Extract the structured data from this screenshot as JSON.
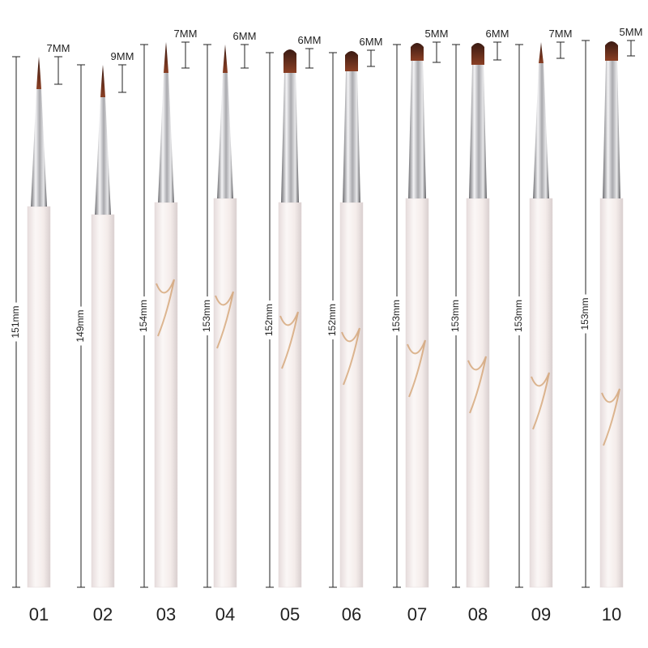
{
  "brushes": [
    {
      "number": "01",
      "tip": "7MM",
      "length": "151mm"
    },
    {
      "number": "02",
      "tip": "9MM",
      "length": "149mm"
    },
    {
      "number": "03",
      "tip": "7MM",
      "length": "154mm"
    },
    {
      "number": "04",
      "tip": "6MM",
      "length": "153mm"
    },
    {
      "number": "05",
      "tip": "6MM",
      "length": "152mm"
    },
    {
      "number": "06",
      "tip": "6MM",
      "length": "152mm"
    },
    {
      "number": "07",
      "tip": "5MM",
      "length": "153mm"
    },
    {
      "number": "08",
      "tip": "6MM",
      "length": "153mm"
    },
    {
      "number": "09",
      "tip": "7MM",
      "length": "153mm"
    },
    {
      "number": "10",
      "tip": "5MM",
      "length": "153mm"
    }
  ]
}
